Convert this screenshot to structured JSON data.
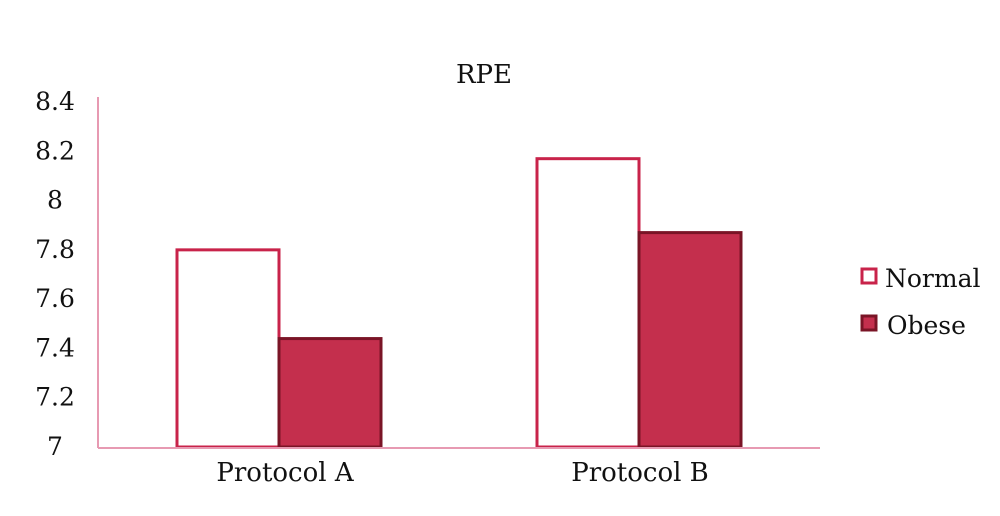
{
  "chart_data": {
    "type": "bar",
    "title": "RPE",
    "xlabel": "",
    "ylabel": "",
    "categories": [
      "Protocol A",
      "Protocol B"
    ],
    "series": [
      {
        "name": "Normal",
        "values": [
          7.8,
          8.17
        ]
      },
      {
        "name": "Obese",
        "values": [
          7.44,
          7.87
        ]
      }
    ],
    "ylim": [
      7,
      8.4
    ],
    "y_ticks": [
      "7",
      "7.2",
      "7.4",
      "7.6",
      "7.8",
      "8",
      "8.2",
      "8.4"
    ],
    "grid": false,
    "legend": "right",
    "colors": {
      "normal_fill": "#ffffff",
      "normal_stroke": "#c8234a",
      "obese_fill": "#c42f4d",
      "obese_stroke": "#7a1426",
      "axis": "#e79ab2"
    }
  }
}
